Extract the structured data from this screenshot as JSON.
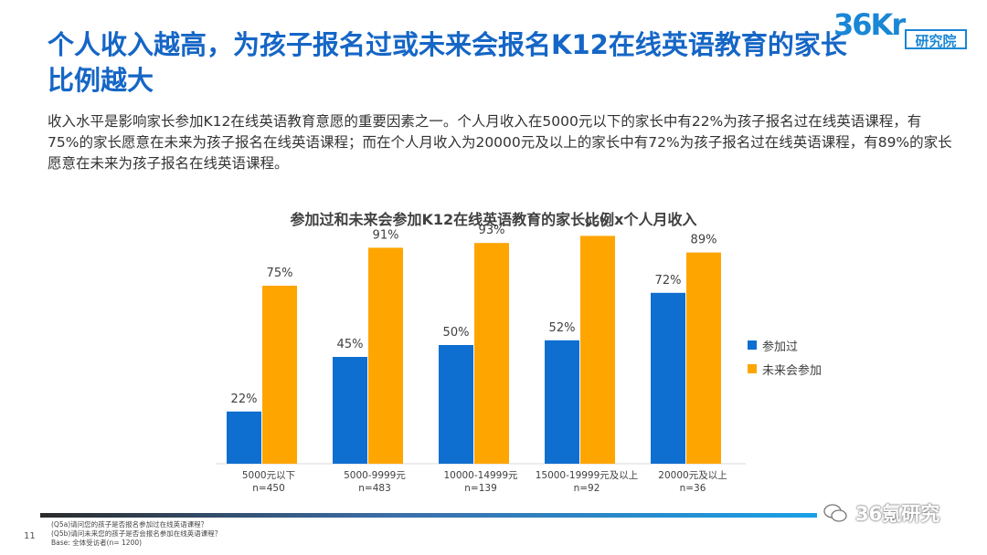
{
  "page": {
    "title": "个人收入越高，为孩子报名过或未来会报名K12在线英语教育的家长比例越大",
    "intro": "收入水平是影响家长参加K12在线英语教育意愿的重要因素之一。个人月收入在5000元以下的家长中有22%为孩子报名过在线英语课程，有75%的家长愿意在未来为孩子报名在线英语课程；而在个人月收入为20000元及以上的家长中有72%为孩子报名过在线英语课程，有89%的家长愿意在未来为孩子报名在线英语课程。",
    "logo_number": "36Kr",
    "logo_label": "研究院",
    "page_number": "11",
    "notes": [
      "(Q5a)请问您的孩子是否报名参加过在线英语课程？",
      "(Q5b)请问未来您的孩子是否会报名参加在线英语课程？",
      "Base: 全体受访者(n= 1200)"
    ],
    "watermark": "36氪研究"
  },
  "chart_data": {
    "type": "bar",
    "title": "参加过和未来会参加K12在线英语教育的家长比例x个人月收入",
    "categories": [
      "5000元以下",
      "5000-9999元",
      "10000-14999元",
      "15000-19999元及以上",
      "20000元及以上"
    ],
    "sample_sizes": [
      "n=450",
      "n=483",
      "n=139",
      "n=92",
      "n=36"
    ],
    "series": [
      {
        "name": "参加过",
        "values": [
          22,
          45,
          50,
          52,
          72
        ],
        "color": "#0e6fd0"
      },
      {
        "name": "未来会参加",
        "values": [
          75,
          91,
          93,
          96,
          89
        ],
        "color": "#ffa500"
      }
    ],
    "value_suffix": "%",
    "ylim": [
      0,
      100
    ],
    "legend_position": "right"
  }
}
